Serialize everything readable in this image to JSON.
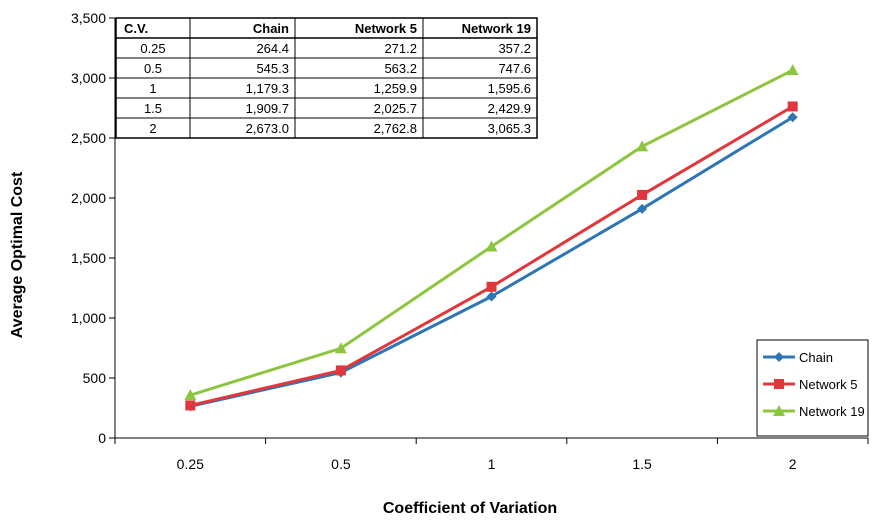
{
  "chart_data": {
    "type": "line",
    "categories": [
      "0.25",
      "0.5",
      "1",
      "1.5",
      "2"
    ],
    "series": [
      {
        "name": "Chain",
        "values": [
          264.4,
          545.3,
          1179.3,
          1909.7,
          2673.0
        ],
        "color": "#2e75b6",
        "marker": "diamond"
      },
      {
        "name": "Network 5",
        "values": [
          271.2,
          563.2,
          1259.9,
          2025.7,
          2762.8
        ],
        "color": "#e0373d",
        "marker": "square"
      },
      {
        "name": "Network 19",
        "values": [
          357.2,
          747.6,
          1595.6,
          2429.9,
          3065.3
        ],
        "color": "#8cc63f",
        "marker": "triangle"
      }
    ],
    "xlabel": "Coefficient of Variation",
    "ylabel": "Average Optimal Cost",
    "ylim": [
      0,
      3500
    ],
    "yticks": [
      0,
      500,
      1000,
      1500,
      2000,
      2500,
      3000,
      3500
    ],
    "ytick_labels": [
      "0",
      "500",
      "1,000",
      "1,500",
      "2,000",
      "2,500",
      "3,000",
      "3,500"
    ],
    "grid": false,
    "legend_position": "bottom-right"
  },
  "data_table": {
    "headers": [
      "C.V.",
      "Chain",
      "Network 5",
      "Network 19"
    ],
    "rows": [
      [
        "0.25",
        "264.4",
        "271.2",
        "357.2"
      ],
      [
        "0.5",
        "545.3",
        "563.2",
        "747.6"
      ],
      [
        "1",
        "1,179.3",
        "1,259.9",
        "1,595.6"
      ],
      [
        "1.5",
        "1,909.7",
        "2,025.7",
        "2,429.9"
      ],
      [
        "2",
        "2,673.0",
        "2,762.8",
        "3,065.3"
      ]
    ]
  }
}
